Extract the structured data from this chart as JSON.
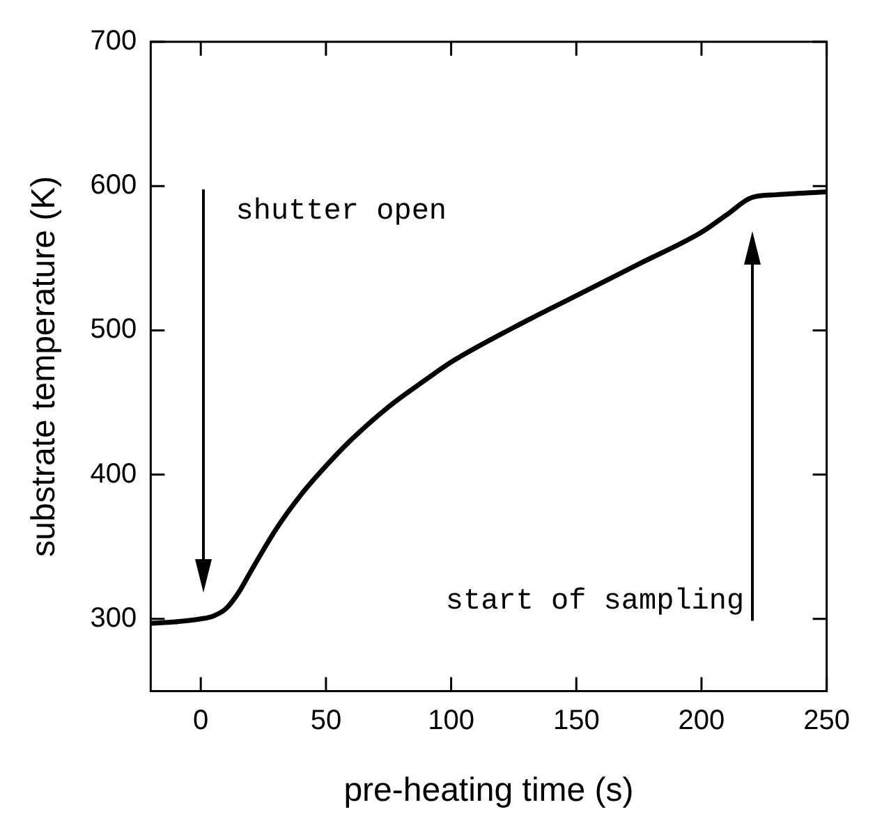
{
  "chart_data": {
    "type": "line",
    "xlabel": "pre-heating time (s)",
    "ylabel": "substrate temperature (K)",
    "xlim": [
      -20,
      250
    ],
    "ylim": [
      250,
      700
    ],
    "xticks": [
      0,
      50,
      100,
      150,
      200,
      250
    ],
    "yticks": [
      300,
      400,
      500,
      600,
      700
    ],
    "grid": false,
    "legend": false,
    "marker": "none",
    "line_style": "solid",
    "series": [
      {
        "color": "#000000",
        "x": [
          -20,
          -10,
          0,
          5,
          10,
          15,
          20,
          30,
          40,
          50,
          60,
          75,
          90,
          100,
          125,
          150,
          175,
          200,
          210,
          220,
          230,
          250
        ],
        "values": [
          297,
          298,
          300,
          302,
          307,
          318,
          333,
          362,
          386,
          406,
          424,
          447,
          466,
          478,
          502,
          524,
          546,
          568,
          580,
          592,
          594,
          596
        ]
      }
    ],
    "annotations": [
      "shutter open",
      "start of sampling"
    ]
  }
}
